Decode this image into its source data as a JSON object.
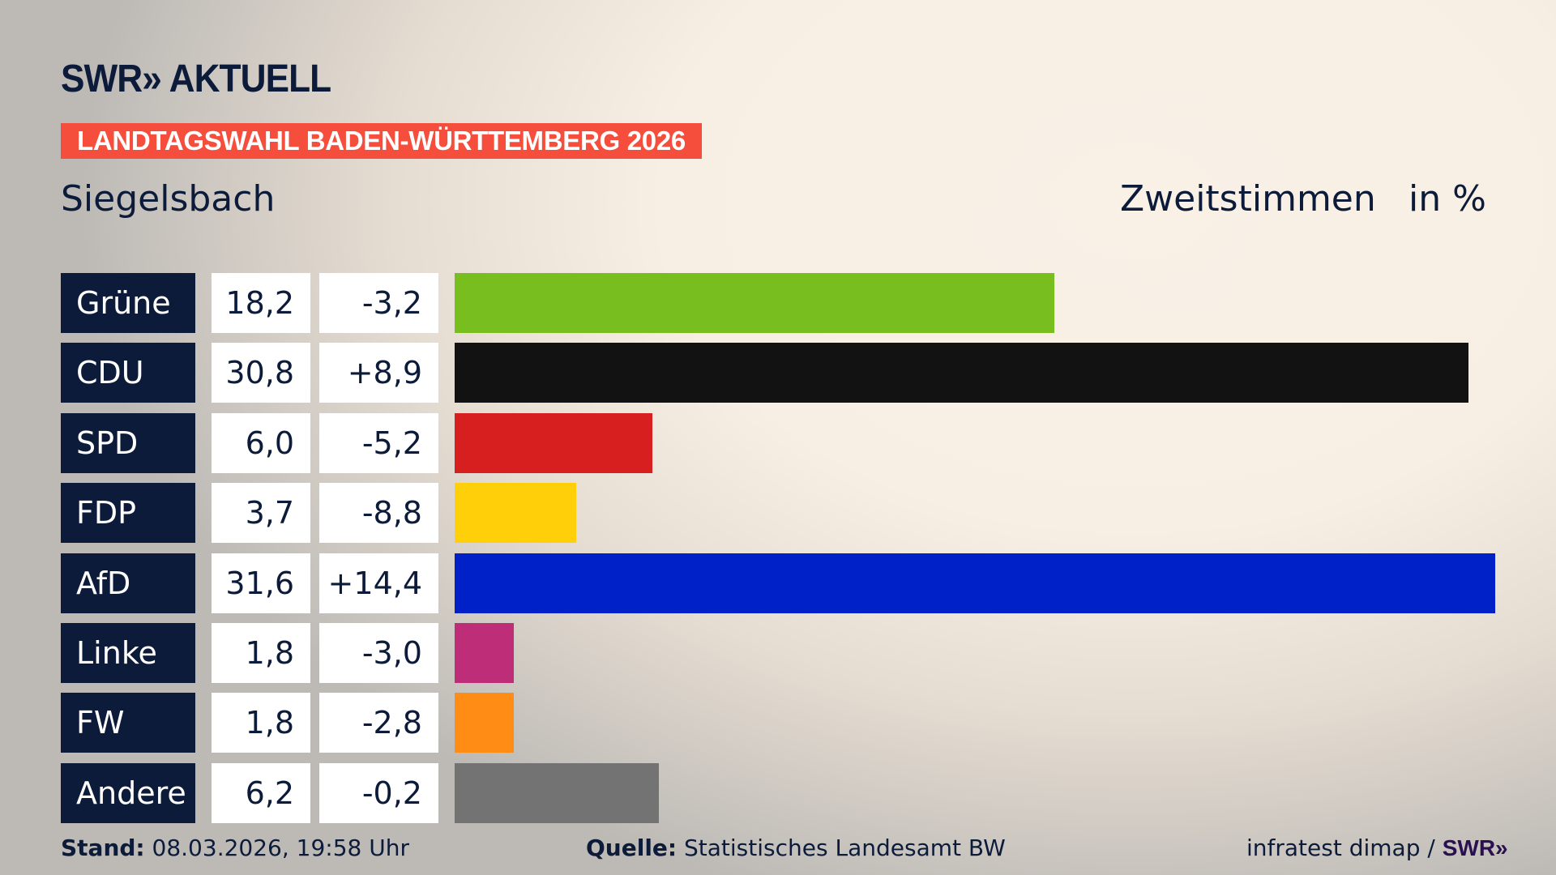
{
  "header": {
    "logo": "SWR» AKTUELL",
    "banner": "LANDTAGSWAHL BADEN-WÜRTTEMBERG 2026",
    "place": "Siegelsbach",
    "vote_type": "Zweitstimmen",
    "unit": "in %"
  },
  "colors": {
    "navy": "#0c1b3a",
    "banner": "#f54e3c"
  },
  "chart_data": {
    "type": "bar",
    "orientation": "horizontal",
    "categories": [
      "Grüne",
      "CDU",
      "SPD",
      "FDP",
      "AfD",
      "Linke",
      "FW",
      "Andere"
    ],
    "values": [
      18.2,
      30.8,
      6.0,
      3.7,
      31.6,
      1.8,
      1.8,
      6.2
    ],
    "value_labels": [
      "18,2",
      "30,8",
      "6,0",
      "3,7",
      "31,6",
      "1,8",
      "1,8",
      "6,2"
    ],
    "change_labels": [
      "-3,2",
      "+8,9",
      "-5,2",
      "-8,8",
      "+14,4",
      "-3,0",
      "-2,8",
      "-0,2"
    ],
    "changes": [
      -3.2,
      8.9,
      -5.2,
      -8.8,
      14.4,
      -3.0,
      -2.8,
      -0.2
    ],
    "colors": [
      "#78be1e",
      "#121212",
      "#d81f1f",
      "#ffd00a",
      "#0021c8",
      "#be2d78",
      "#ff8c14",
      "#737373"
    ],
    "ylabel": "Zweitstimmen",
    "unit": "in %",
    "grid": false
  },
  "footer": {
    "stand_label": "Stand:",
    "stand_value": "08.03.2026, 19:58 Uhr",
    "source_label": "Quelle:",
    "source_value": "Statistisches Landesamt BW",
    "credit": "infratest dimap /",
    "credit_logo": "SWR»"
  }
}
